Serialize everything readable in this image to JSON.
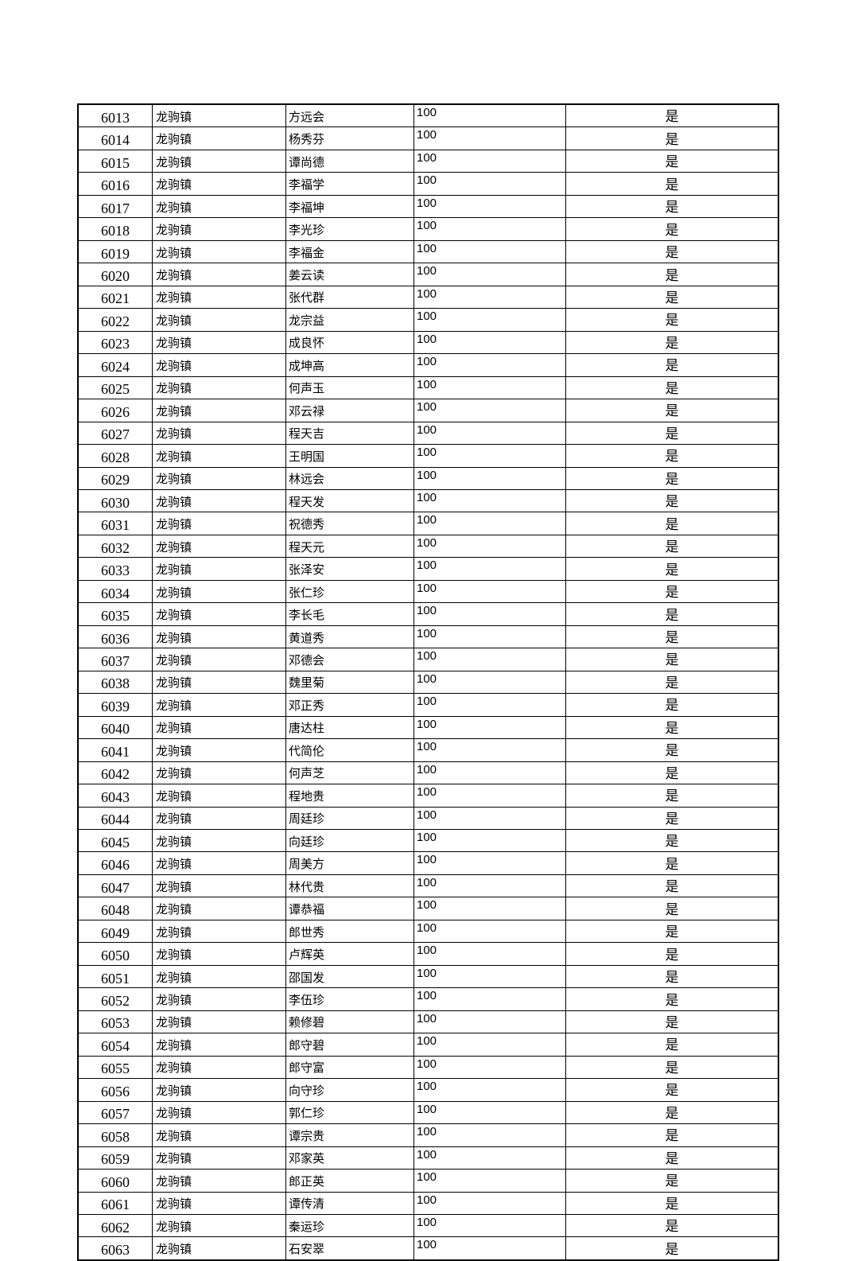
{
  "table": {
    "rows": [
      [
        "6013",
        "龙驹镇",
        "方远会",
        "100",
        "是"
      ],
      [
        "6014",
        "龙驹镇",
        "杨秀芬",
        "100",
        "是"
      ],
      [
        "6015",
        "龙驹镇",
        "谭尚德",
        "100",
        "是"
      ],
      [
        "6016",
        "龙驹镇",
        "李福学",
        "100",
        "是"
      ],
      [
        "6017",
        "龙驹镇",
        "李福坤",
        "100",
        "是"
      ],
      [
        "6018",
        "龙驹镇",
        "李光珍",
        "100",
        "是"
      ],
      [
        "6019",
        "龙驹镇",
        "李福金",
        "100",
        "是"
      ],
      [
        "6020",
        "龙驹镇",
        "姜云读",
        "100",
        "是"
      ],
      [
        "6021",
        "龙驹镇",
        "张代群",
        "100",
        "是"
      ],
      [
        "6022",
        "龙驹镇",
        "龙宗益",
        "100",
        "是"
      ],
      [
        "6023",
        "龙驹镇",
        "成良怀",
        "100",
        "是"
      ],
      [
        "6024",
        "龙驹镇",
        "成坤高",
        "100",
        "是"
      ],
      [
        "6025",
        "龙驹镇",
        "何声玉",
        "100",
        "是"
      ],
      [
        "6026",
        "龙驹镇",
        "邓云禄",
        "100",
        "是"
      ],
      [
        "6027",
        "龙驹镇",
        "程天吉",
        "100",
        "是"
      ],
      [
        "6028",
        "龙驹镇",
        "王明国",
        "100",
        "是"
      ],
      [
        "6029",
        "龙驹镇",
        "林远会",
        "100",
        "是"
      ],
      [
        "6030",
        "龙驹镇",
        "程天发",
        "100",
        "是"
      ],
      [
        "6031",
        "龙驹镇",
        "祝德秀",
        "100",
        "是"
      ],
      [
        "6032",
        "龙驹镇",
        "程天元",
        "100",
        "是"
      ],
      [
        "6033",
        "龙驹镇",
        "张泽安",
        "100",
        "是"
      ],
      [
        "6034",
        "龙驹镇",
        "张仁珍",
        "100",
        "是"
      ],
      [
        "6035",
        "龙驹镇",
        "李长毛",
        "100",
        "是"
      ],
      [
        "6036",
        "龙驹镇",
        "黄道秀",
        "100",
        "是"
      ],
      [
        "6037",
        "龙驹镇",
        "邓德会",
        "100",
        "是"
      ],
      [
        "6038",
        "龙驹镇",
        "魏里菊",
        "100",
        "是"
      ],
      [
        "6039",
        "龙驹镇",
        "邓正秀",
        "100",
        "是"
      ],
      [
        "6040",
        "龙驹镇",
        "唐达柱",
        "100",
        "是"
      ],
      [
        "6041",
        "龙驹镇",
        "代简伦",
        "100",
        "是"
      ],
      [
        "6042",
        "龙驹镇",
        "何声芝",
        "100",
        "是"
      ],
      [
        "6043",
        "龙驹镇",
        "程地贵",
        "100",
        "是"
      ],
      [
        "6044",
        "龙驹镇",
        "周廷珍",
        "100",
        "是"
      ],
      [
        "6045",
        "龙驹镇",
        "向廷珍",
        "100",
        "是"
      ],
      [
        "6046",
        "龙驹镇",
        "周美方",
        "100",
        "是"
      ],
      [
        "6047",
        "龙驹镇",
        "林代贵",
        "100",
        "是"
      ],
      [
        "6048",
        "龙驹镇",
        "谭恭福",
        "100",
        "是"
      ],
      [
        "6049",
        "龙驹镇",
        "郎世秀",
        "100",
        "是"
      ],
      [
        "6050",
        "龙驹镇",
        "卢辉英",
        "100",
        "是"
      ],
      [
        "6051",
        "龙驹镇",
        "邵国发",
        "100",
        "是"
      ],
      [
        "6052",
        "龙驹镇",
        "李伍珍",
        "100",
        "是"
      ],
      [
        "6053",
        "龙驹镇",
        "赖修碧",
        "100",
        "是"
      ],
      [
        "6054",
        "龙驹镇",
        "郎守碧",
        "100",
        "是"
      ],
      [
        "6055",
        "龙驹镇",
        "郎守富",
        "100",
        "是"
      ],
      [
        "6056",
        "龙驹镇",
        "向守珍",
        "100",
        "是"
      ],
      [
        "6057",
        "龙驹镇",
        "郭仁珍",
        "100",
        "是"
      ],
      [
        "6058",
        "龙驹镇",
        "谭宗贵",
        "100",
        "是"
      ],
      [
        "6059",
        "龙驹镇",
        "邓家英",
        "100",
        "是"
      ],
      [
        "6060",
        "龙驹镇",
        "郎正英",
        "100",
        "是"
      ],
      [
        "6061",
        "龙驹镇",
        "谭传清",
        "100",
        "是"
      ],
      [
        "6062",
        "龙驹镇",
        "秦运珍",
        "100",
        "是"
      ],
      [
        "6063",
        "龙驹镇",
        "石安翠",
        "100",
        "是"
      ]
    ]
  }
}
